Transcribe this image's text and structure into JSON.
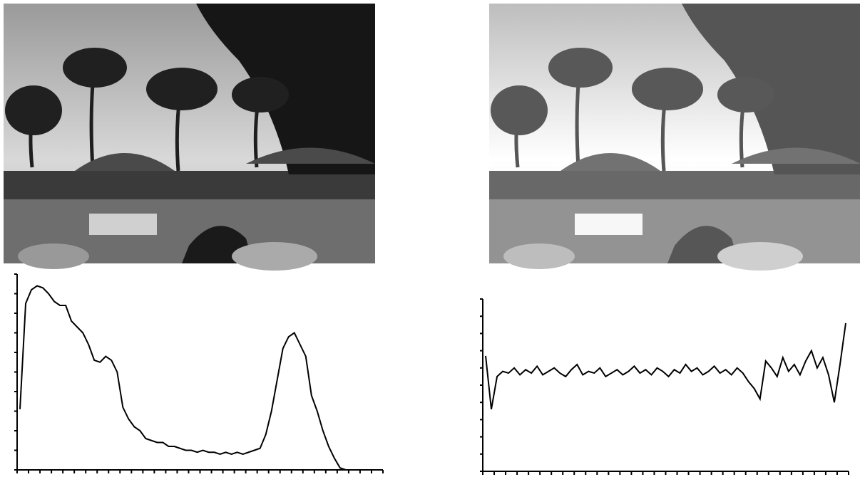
{
  "chart_data": [
    {
      "type": "line",
      "color": "#000000",
      "xlim": [
        0,
        64
      ],
      "ylim": [
        0,
        100
      ],
      "xticks": [
        0,
        2,
        4,
        6,
        8,
        10,
        12,
        14,
        16,
        18,
        20,
        22,
        24,
        26,
        28,
        30,
        32,
        34,
        36,
        38,
        40,
        42,
        44,
        46,
        48,
        50,
        52,
        54,
        56,
        58,
        60,
        62,
        64
      ],
      "yticks": [
        0,
        10,
        20,
        30,
        40,
        50,
        60,
        70,
        80,
        90,
        100
      ],
      "values": [
        31,
        85,
        92,
        94,
        93,
        90,
        86,
        84,
        84,
        76,
        73,
        70,
        64,
        56,
        55,
        58,
        56,
        50,
        32,
        26,
        22,
        20,
        16,
        15,
        14,
        14,
        12,
        12,
        11,
        10,
        10,
        9,
        10,
        9,
        9,
        8,
        9,
        8,
        9,
        8,
        9,
        10,
        11,
        18,
        30,
        46,
        62,
        68,
        70,
        64,
        58,
        38,
        30,
        20,
        12,
        6,
        1,
        0,
        0,
        0,
        0,
        0,
        0,
        0
      ]
    },
    {
      "type": "line",
      "color": "#000000",
      "xlim": [
        0,
        64
      ],
      "ylim": [
        0,
        100
      ],
      "xticks": [
        0,
        2,
        4,
        6,
        8,
        10,
        12,
        14,
        16,
        18,
        20,
        22,
        24,
        26,
        28,
        30,
        32,
        34,
        36,
        38,
        40,
        42,
        44,
        46,
        48,
        50,
        52,
        54,
        56,
        58,
        60,
        62,
        64
      ],
      "yticks": [
        0,
        10,
        20,
        30,
        40,
        50,
        60,
        70,
        80,
        90,
        100
      ],
      "values": [
        67,
        36,
        55,
        58,
        57,
        60,
        56,
        59,
        57,
        61,
        56,
        58,
        60,
        57,
        55,
        59,
        62,
        56,
        58,
        57,
        60,
        55,
        57,
        59,
        56,
        58,
        61,
        57,
        59,
        56,
        60,
        58,
        55,
        59,
        57,
        62,
        58,
        60,
        56,
        58,
        61,
        57,
        59,
        56,
        60,
        57,
        52,
        48,
        42,
        64,
        60,
        55,
        66,
        58,
        62,
        56,
        64,
        70,
        60,
        66,
        56,
        40,
        62,
        86
      ]
    }
  ]
}
